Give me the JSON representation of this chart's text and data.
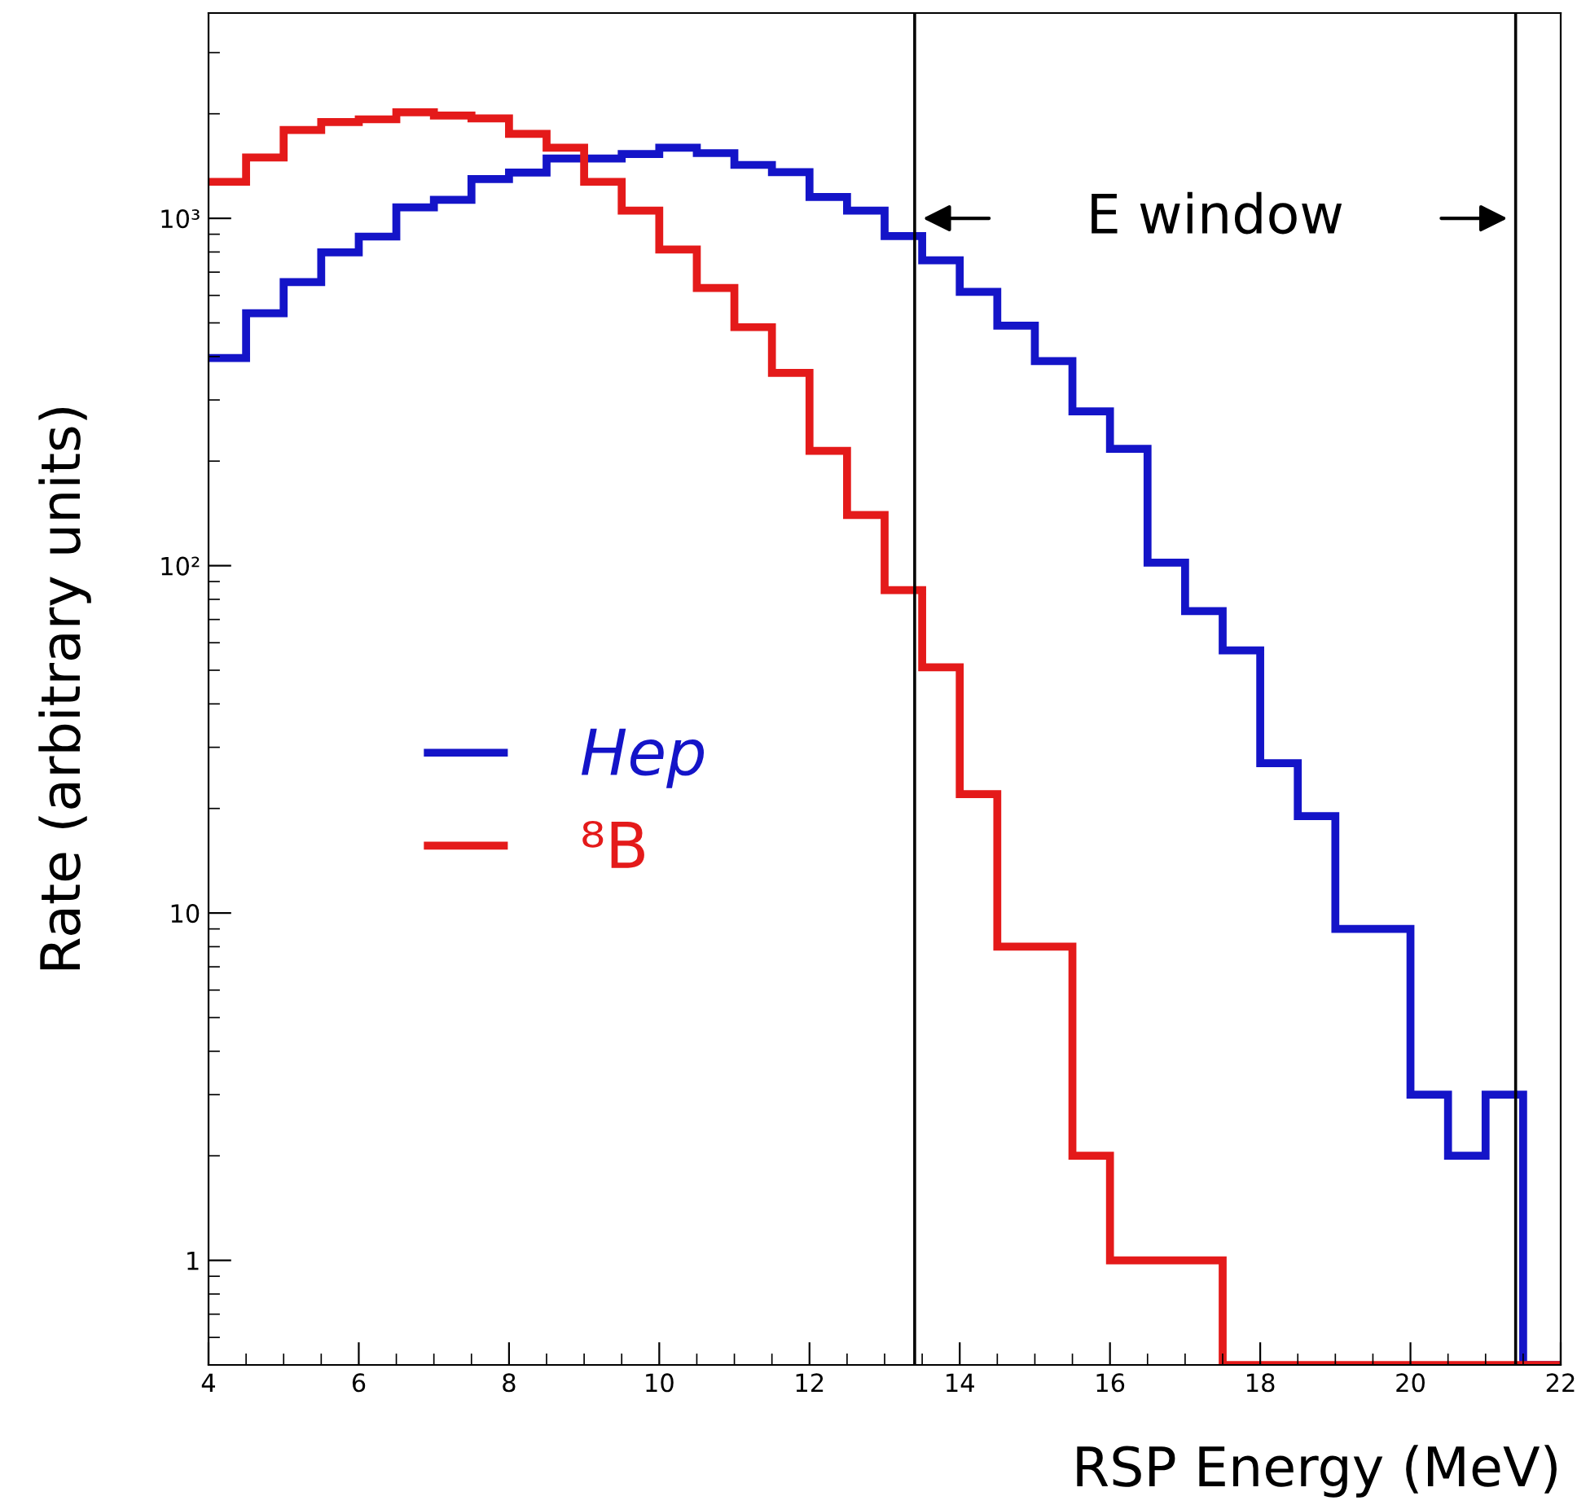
{
  "chart_data": {
    "type": "histogram",
    "xlabel": "RSP Energy (MeV)",
    "ylabel": "Rate (arbitrary units)",
    "bins": [
      4,
      4.5,
      5,
      5.5,
      6,
      6.5,
      7,
      7.5,
      8,
      8.5,
      9,
      9.5,
      10,
      10.5,
      11,
      11.5,
      12,
      12.5,
      13,
      13.5,
      14,
      14.5,
      15,
      15.5,
      16,
      16.5,
      17,
      17.5,
      18,
      18.5,
      19,
      19.5,
      20,
      20.5,
      21,
      21.5,
      22
    ],
    "series": [
      {
        "name": "Hep",
        "color": "#1414c8",
        "values": [
          396,
          533,
          655,
          798,
          886,
          1076,
          1131,
          1297,
          1355,
          1487,
          1487,
          1531,
          1597,
          1541,
          1425,
          1359,
          1152,
          1052,
          889,
          757,
          614,
          491,
          388,
          278,
          217,
          102,
          74,
          57,
          27,
          19,
          9,
          9,
          3,
          2,
          3,
          null
        ]
      },
      {
        "name": "⁸B",
        "color": "#e41a1a",
        "values": [
          1274,
          1497,
          1795,
          1893,
          1928,
          2020,
          1977,
          1940,
          1750,
          1597,
          1274,
          1052,
          813,
          630,
          486,
          359,
          214,
          140,
          85,
          51,
          22,
          8,
          8,
          2,
          1,
          1,
          1,
          null,
          null,
          null,
          null,
          null,
          null,
          null,
          null,
          null
        ]
      }
    ],
    "log": "y",
    "xlim": [
      4,
      22
    ],
    "ylim": [
      0.5,
      3900
    ],
    "xticks": [
      4,
      6,
      8,
      10,
      12,
      14,
      16,
      18,
      20,
      22
    ],
    "yticks": [
      1,
      10,
      {
        "value": 100,
        "label": "10²"
      },
      {
        "value": 1000,
        "label": "10³"
      }
    ],
    "ref_lines": [
      {
        "axis": "x",
        "value": 13.4,
        "label": null,
        "color": "#000000"
      },
      {
        "axis": "x",
        "value": 21.4,
        "label": null,
        "color": "#000000"
      }
    ],
    "annotations": [
      "E window"
    ],
    "legend": "left",
    "grid": false
  }
}
